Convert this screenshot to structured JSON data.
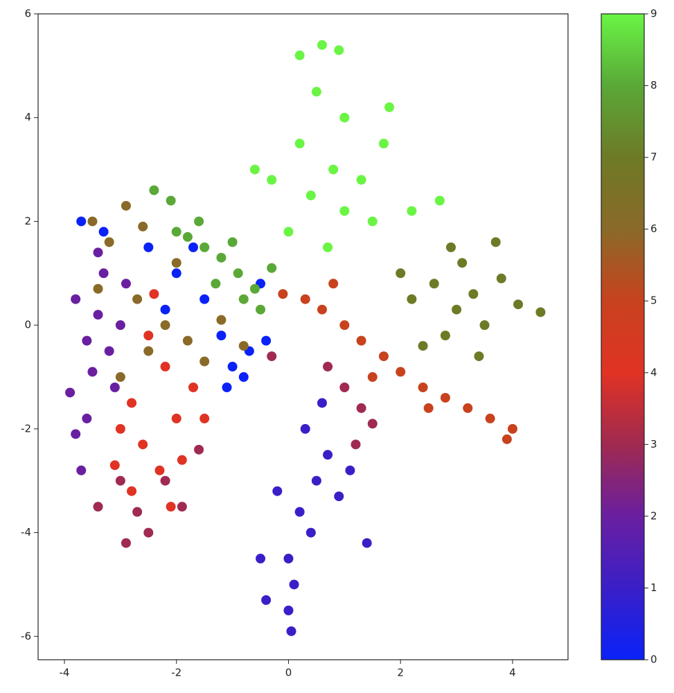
{
  "chart_data": {
    "type": "scatter",
    "x": [
      -3.8,
      -3.6,
      -3.4,
      -3.5,
      -3.2,
      -3.9,
      -3.3,
      -3.0,
      -3.6,
      -3.7,
      -3.1,
      -3.4,
      -2.9,
      -3.8,
      -3.7,
      -3.3,
      -2.5,
      -2,
      -1.5,
      -1.2,
      -1,
      -0.8,
      -0.7,
      -1.1,
      -0.4,
      -0.5,
      -1.7,
      -2.2,
      -3.5,
      -2.9,
      -2.6,
      -3.2,
      -2.7,
      -2.2,
      -1.8,
      -2.5,
      -1.5,
      -3.0,
      -0.8,
      -2.0,
      -1.2,
      -3.4,
      -2.5,
      -2.2,
      -2.8,
      -2.0,
      -2.6,
      -1.7,
      -2.3,
      -3.0,
      -1.9,
      -2.4,
      -1.5,
      -2.8,
      -2.1,
      -3.1,
      -3.0,
      -2.7,
      -2.5,
      -2.9,
      -2.2,
      -1.9,
      -3.4,
      -1.6,
      1.0,
      1.3,
      1.5,
      0.7,
      1.2,
      -0.3,
      0.3,
      0.7,
      0.5,
      0.9,
      0.2,
      1.1,
      0.4,
      0.0,
      -0.2,
      0.1,
      0.0,
      0.05,
      -0.4,
      1.4,
      -0.5,
      0.6,
      -1.8,
      -1.5,
      -1.2,
      -0.9,
      -0.6,
      -1.3,
      -1.0,
      -0.5,
      -2.0,
      -2.4,
      -2.1,
      -0.8,
      -1.6,
      -0.3,
      -0.1,
      0.3,
      0.6,
      1.0,
      1.3,
      1.7,
      2.0,
      2.4,
      2.8,
      3.2,
      3.6,
      4.0,
      1.5,
      2.5,
      0.8,
      3.9,
      2.2,
      2.6,
      3.0,
      2.8,
      3.3,
      3.5,
      3.8,
      4.1,
      4.5,
      3.1,
      2.4,
      3.4,
      2.0,
      3.7,
      2.9,
      0.6,
      0.2,
      0.9,
      0.5,
      1.0,
      0.2,
      0.8,
      1.3,
      0.4,
      -0.3,
      1.7,
      1.5,
      0.7,
      1.0,
      -0.6,
      0.0,
      2.2,
      2.7,
      1.8
    ],
    "y": [
      0.5,
      -0.3,
      0.2,
      -0.9,
      -0.5,
      -1.3,
      1.0,
      0,
      -1.8,
      -2.8,
      -1.2,
      1.4,
      0.8,
      -2.1,
      2.0,
      1.8,
      1.5,
      1,
      0.5,
      -0.2,
      -0.8,
      -1.0,
      -0.5,
      -1.2,
      -0.3,
      0.8,
      1.5,
      0.3,
      2.0,
      2.3,
      1.9,
      1.6,
      0.5,
      0.0,
      -0.3,
      -0.5,
      -0.7,
      -1.0,
      -0.4,
      1.2,
      0.1,
      0.7,
      -0.2,
      -0.8,
      -1.5,
      -1.8,
      -2.3,
      -1.2,
      -2.8,
      -2.0,
      -2.6,
      0.6,
      -1.8,
      -3.2,
      -3.5,
      -2.7,
      -3.0,
      -3.6,
      -4.0,
      -4.2,
      -3.0,
      -3.5,
      -3.5,
      -2.4,
      -1.2,
      -1.6,
      -1.9,
      -0.8,
      -2.3,
      -0.6,
      -2.0,
      -2.5,
      -3.0,
      -3.3,
      -3.6,
      -2.8,
      -4.0,
      -4.5,
      -3.2,
      -5.0,
      -5.5,
      -5.9,
      -5.3,
      -4.2,
      -4.5,
      -1.5,
      1.7,
      1.5,
      1.3,
      1.0,
      0.7,
      0.8,
      1.6,
      0.3,
      1.8,
      2.6,
      2.4,
      0.5,
      2.0,
      1.1,
      0.6,
      0.5,
      0.3,
      0.0,
      -0.3,
      -0.6,
      -0.9,
      -1.2,
      -1.4,
      -1.6,
      -1.8,
      -2.0,
      -1.0,
      -1.6,
      0.8,
      -2.2,
      0.5,
      0.8,
      0.3,
      -0.2,
      0.6,
      0.0,
      0.9,
      0.4,
      0.25,
      1.2,
      -0.4,
      -0.6,
      1.0,
      1.6,
      1.5,
      5.4,
      5.2,
      5.3,
      4.5,
      4.0,
      3.5,
      3.0,
      2.8,
      2.5,
      2.8,
      3.5,
      2.0,
      1.5,
      2.2,
      3.0,
      1.8,
      2.2,
      2.4,
      4.2
    ],
    "c": [
      2,
      2,
      2,
      2,
      2,
      2,
      2,
      2,
      2,
      2,
      2,
      2,
      2,
      2,
      0,
      0,
      0,
      0,
      0,
      0,
      0,
      0,
      0,
      0,
      0,
      0,
      0,
      0,
      6,
      6,
      6,
      6,
      6,
      6,
      6,
      6,
      6,
      6,
      6,
      6,
      6,
      6,
      4,
      4,
      4,
      4,
      4,
      4,
      4,
      4,
      4,
      4,
      4,
      4,
      4,
      4,
      3,
      3,
      3,
      3,
      3,
      3,
      3,
      3,
      3,
      3,
      3,
      3,
      3,
      3,
      1,
      1,
      1,
      1,
      1,
      1,
      1,
      1,
      1,
      1,
      1,
      1,
      1,
      1,
      1,
      1,
      8,
      8,
      8,
      8,
      8,
      8,
      8,
      8,
      8,
      8,
      8,
      8,
      8,
      8,
      5,
      5,
      5,
      5,
      5,
      5,
      5,
      5,
      5,
      5,
      5,
      5,
      5,
      5,
      5,
      5,
      7,
      7,
      7,
      7,
      7,
      7,
      7,
      7,
      7,
      7,
      7,
      7,
      7,
      7,
      7,
      9,
      9,
      9,
      9,
      9,
      9,
      9,
      9,
      9,
      9,
      9,
      9,
      9,
      9,
      9,
      9,
      9,
      9,
      9
    ],
    "colormap": [
      "#0a22f8",
      "#3a1fc8",
      "#6a1fa0",
      "#a02a50",
      "#e03324",
      "#c8421e",
      "#8a6a28",
      "#6e7a26",
      "#5aa838",
      "#6af545"
    ],
    "xlim": [
      -4.47,
      4.99
    ],
    "ylim": [
      -6.45,
      6
    ],
    "xticks": [
      -4,
      -2,
      0,
      2,
      4
    ],
    "yticks": [
      -6,
      -4,
      -2,
      0,
      2,
      4,
      6
    ],
    "clim": [
      0,
      9
    ],
    "cticks": [
      0,
      1,
      2,
      3,
      4,
      5,
      6,
      7,
      8,
      9
    ]
  }
}
